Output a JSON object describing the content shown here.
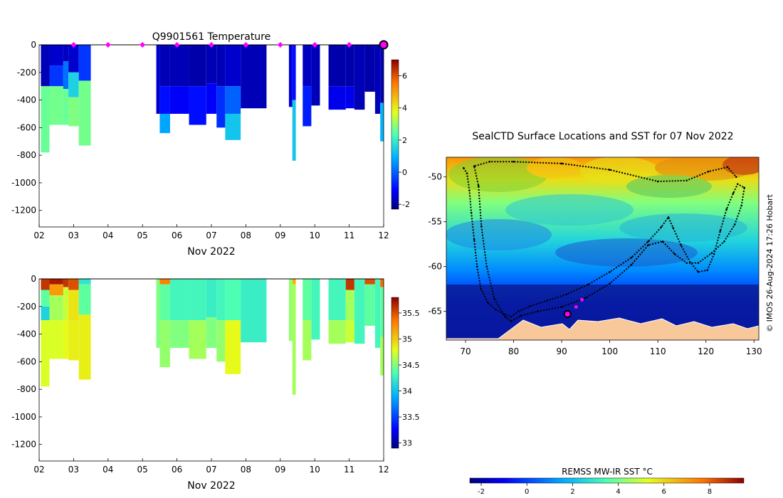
{
  "charts": {
    "temperature": {
      "title": "Q9901561  Temperature",
      "xlabel": "Nov 2022",
      "colorbar_ticks": [
        "-2",
        "0",
        "2",
        "4",
        "6"
      ]
    },
    "salinity": {
      "title": "",
      "xlabel": "Nov 2022",
      "colorbar_ticks": [
        "33",
        "33.5",
        "34",
        "34.5",
        "35",
        "35.5"
      ]
    },
    "map": {
      "title": "SealCTD Surface Locations and SST for 07 Nov 2022",
      "colorbar_label": "REMSS MW-IR SST °C",
      "credit": "© IMOS 26-Aug-2024 17:26 Hobart"
    }
  },
  "chart_data": [
    {
      "id": "temperature",
      "type": "heatmap",
      "title": "Q9901561  Temperature",
      "xlabel": "Nov 2022",
      "ylabel": "",
      "x_ticks": [
        "02",
        "03",
        "04",
        "05",
        "06",
        "07",
        "08",
        "09",
        "10",
        "11",
        "12"
      ],
      "xlim": [
        2,
        12
      ],
      "y_ticks": [
        "0",
        "-200",
        "-400",
        "-600",
        "-800",
        "-1000",
        "-1200"
      ],
      "ylim": [
        -1320,
        0
      ],
      "colorbar": {
        "min": -2.3,
        "max": 7,
        "ticks": [
          -2,
          0,
          2,
          4,
          6
        ]
      },
      "surface_markers_day": [
        3,
        4,
        5,
        6,
        7,
        8,
        9,
        10,
        11,
        12
      ],
      "latest_marker_day": 12,
      "profiles": [
        {
          "t0": 2.05,
          "t1": 2.3,
          "layers": [
            [
              0,
              -300,
              -1.8
            ],
            [
              -300,
              -780,
              2.6
            ]
          ]
        },
        {
          "t0": 2.3,
          "t1": 2.7,
          "layers": [
            [
              0,
              -150,
              -1.6
            ],
            [
              -150,
              -300,
              -0.5
            ],
            [
              -300,
              -580,
              2.7
            ]
          ]
        },
        {
          "t0": 2.7,
          "t1": 2.85,
          "layers": [
            [
              0,
              -120,
              -1.7
            ],
            [
              -120,
              -320,
              0.2
            ],
            [
              -320,
              -580,
              2.6
            ]
          ]
        },
        {
          "t0": 2.85,
          "t1": 3.15,
          "layers": [
            [
              0,
              -200,
              -1.6
            ],
            [
              -200,
              -380,
              1.5
            ],
            [
              -380,
              -590,
              2.8
            ]
          ]
        },
        {
          "t0": 3.15,
          "t1": 3.5,
          "layers": [
            [
              0,
              -260,
              -0.5
            ],
            [
              -260,
              -730,
              2.7
            ]
          ]
        },
        {
          "t0": 5.4,
          "t1": 5.5,
          "layers": [
            [
              0,
              -500,
              -1.6
            ]
          ]
        },
        {
          "t0": 5.5,
          "t1": 5.8,
          "layers": [
            [
              0,
              -300,
              -1.8
            ],
            [
              -300,
              -500,
              -1.0
            ],
            [
              -500,
              -640,
              0.8
            ]
          ]
        },
        {
          "t0": 5.8,
          "t1": 6.35,
          "layers": [
            [
              0,
              -300,
              -1.8
            ],
            [
              -300,
              -500,
              -1.2
            ]
          ]
        },
        {
          "t0": 6.35,
          "t1": 6.85,
          "layers": [
            [
              0,
              -300,
              -1.9
            ],
            [
              -300,
              -580,
              -1.0
            ]
          ]
        },
        {
          "t0": 6.85,
          "t1": 7.15,
          "layers": [
            [
              0,
              -280,
              -1.8
            ],
            [
              -280,
              -500,
              -1.2
            ]
          ]
        },
        {
          "t0": 7.15,
          "t1": 7.4,
          "layers": [
            [
              0,
              -300,
              -1.8
            ],
            [
              -300,
              -600,
              -0.6
            ]
          ]
        },
        {
          "t0": 7.4,
          "t1": 7.85,
          "layers": [
            [
              0,
              -300,
              -1.6
            ],
            [
              -300,
              -500,
              0.0
            ],
            [
              -500,
              -690,
              1.3
            ]
          ]
        },
        {
          "t0": 7.85,
          "t1": 8.6,
          "layers": [
            [
              0,
              -460,
              -1.8
            ]
          ]
        },
        {
          "t0": 9.25,
          "t1": 9.35,
          "layers": [
            [
              0,
              -450,
              -1.5
            ]
          ]
        },
        {
          "t0": 9.35,
          "t1": 9.45,
          "layers": [
            [
              0,
              -400,
              -1.0
            ],
            [
              -400,
              -840,
              1.3
            ]
          ]
        },
        {
          "t0": 9.65,
          "t1": 9.9,
          "layers": [
            [
              0,
              -300,
              -1.7
            ],
            [
              -300,
              -590,
              -0.8
            ]
          ]
        },
        {
          "t0": 9.9,
          "t1": 10.15,
          "layers": [
            [
              0,
              -440,
              -1.8
            ]
          ]
        },
        {
          "t0": 10.4,
          "t1": 10.9,
          "layers": [
            [
              0,
              -300,
              -1.9
            ],
            [
              -300,
              -470,
              -1.3
            ]
          ]
        },
        {
          "t0": 10.9,
          "t1": 11.15,
          "layers": [
            [
              0,
              -300,
              -1.9
            ],
            [
              -300,
              -460,
              -1.3
            ]
          ]
        },
        {
          "t0": 11.15,
          "t1": 11.45,
          "layers": [
            [
              0,
              -470,
              -1.8
            ]
          ]
        },
        {
          "t0": 11.45,
          "t1": 11.75,
          "layers": [
            [
              0,
              -340,
              -1.9
            ]
          ]
        },
        {
          "t0": 11.75,
          "t1": 11.9,
          "layers": [
            [
              0,
              -500,
              -1.8
            ]
          ]
        },
        {
          "t0": 11.9,
          "t1": 12.0,
          "layers": [
            [
              0,
              -420,
              -1.8
            ],
            [
              -420,
              -700,
              1.0
            ]
          ]
        }
      ]
    },
    {
      "id": "salinity",
      "type": "heatmap",
      "title": "",
      "xlabel": "Nov 2022",
      "ylabel": "",
      "x_ticks": [
        "02",
        "03",
        "04",
        "05",
        "06",
        "07",
        "08",
        "09",
        "10",
        "11",
        "12"
      ],
      "xlim": [
        2,
        12
      ],
      "y_ticks": [
        "0",
        "-200",
        "-400",
        "-600",
        "-800",
        "-1000",
        "-1200"
      ],
      "ylim": [
        -1320,
        0
      ],
      "colorbar": {
        "min": 32.9,
        "max": 35.8,
        "ticks": [
          33,
          33.5,
          34,
          34.5,
          35,
          35.5
        ]
      },
      "profiles": [
        {
          "t0": 2.05,
          "t1": 2.3,
          "layers": [
            [
              0,
              -80,
              35.6
            ],
            [
              -80,
              -200,
              34.4
            ],
            [
              -200,
              -300,
              34.1
            ],
            [
              -300,
              -780,
              34.75
            ]
          ]
        },
        {
          "t0": 2.3,
          "t1": 2.7,
          "layers": [
            [
              0,
              -40,
              35.7
            ],
            [
              -40,
              -120,
              35.2
            ],
            [
              -120,
              -300,
              34.6
            ],
            [
              -300,
              -580,
              34.75
            ]
          ]
        },
        {
          "t0": 2.7,
          "t1": 2.85,
          "layers": [
            [
              0,
              -60,
              35.6
            ],
            [
              -60,
              -300,
              34.7
            ],
            [
              -300,
              -580,
              34.8
            ]
          ]
        },
        {
          "t0": 2.85,
          "t1": 3.15,
          "layers": [
            [
              0,
              -80,
              35.5
            ],
            [
              -80,
              -300,
              34.9
            ],
            [
              -300,
              -590,
              34.85
            ]
          ]
        },
        {
          "t0": 3.15,
          "t1": 3.5,
          "layers": [
            [
              0,
              -40,
              34.2
            ],
            [
              -40,
              -260,
              34.4
            ],
            [
              -260,
              -730,
              34.85
            ]
          ]
        },
        {
          "t0": 5.4,
          "t1": 5.5,
          "layers": [
            [
              0,
              -500,
              34.5
            ]
          ]
        },
        {
          "t0": 5.5,
          "t1": 5.8,
          "layers": [
            [
              0,
              -40,
              35.3
            ],
            [
              -40,
              -300,
              34.4
            ],
            [
              -300,
              -640,
              34.55
            ]
          ]
        },
        {
          "t0": 5.8,
          "t1": 6.35,
          "layers": [
            [
              0,
              -300,
              34.3
            ],
            [
              -300,
              -500,
              34.5
            ]
          ]
        },
        {
          "t0": 6.35,
          "t1": 6.85,
          "layers": [
            [
              0,
              -300,
              34.3
            ],
            [
              -300,
              -580,
              34.6
            ]
          ]
        },
        {
          "t0": 6.85,
          "t1": 7.15,
          "layers": [
            [
              0,
              -280,
              34.25
            ],
            [
              -280,
              -500,
              34.5
            ]
          ]
        },
        {
          "t0": 7.15,
          "t1": 7.4,
          "layers": [
            [
              0,
              -300,
              34.3
            ],
            [
              -300,
              -600,
              34.55
            ]
          ]
        },
        {
          "t0": 7.4,
          "t1": 7.85,
          "layers": [
            [
              0,
              -300,
              34.35
            ],
            [
              -300,
              -690,
              34.8
            ]
          ]
        },
        {
          "t0": 7.85,
          "t1": 8.6,
          "layers": [
            [
              0,
              -460,
              34.25
            ]
          ]
        },
        {
          "t0": 9.25,
          "t1": 9.35,
          "layers": [
            [
              0,
              -450,
              34.55
            ]
          ]
        },
        {
          "t0": 9.35,
          "t1": 9.45,
          "layers": [
            [
              0,
              -40,
              35.1
            ],
            [
              -40,
              -840,
              34.6
            ]
          ]
        },
        {
          "t0": 9.65,
          "t1": 9.9,
          "layers": [
            [
              0,
              -300,
              34.4
            ],
            [
              -300,
              -590,
              34.6
            ]
          ]
        },
        {
          "t0": 9.9,
          "t1": 10.15,
          "layers": [
            [
              0,
              -440,
              34.3
            ]
          ]
        },
        {
          "t0": 10.4,
          "t1": 10.9,
          "layers": [
            [
              0,
              -300,
              34.3
            ],
            [
              -300,
              -470,
              34.6
            ]
          ]
        },
        {
          "t0": 10.9,
          "t1": 11.15,
          "layers": [
            [
              0,
              -80,
              35.6
            ],
            [
              -80,
              -300,
              34.6
            ],
            [
              -300,
              -460,
              34.7
            ]
          ]
        },
        {
          "t0": 11.15,
          "t1": 11.45,
          "layers": [
            [
              0,
              -470,
              34.3
            ]
          ]
        },
        {
          "t0": 11.45,
          "t1": 11.75,
          "layers": [
            [
              0,
              -40,
              35.5
            ],
            [
              -40,
              -340,
              34.4
            ]
          ]
        },
        {
          "t0": 11.75,
          "t1": 11.9,
          "layers": [
            [
              0,
              -500,
              34.3
            ]
          ]
        },
        {
          "t0": 11.9,
          "t1": 12.0,
          "layers": [
            [
              0,
              -60,
              35.4
            ],
            [
              -60,
              -420,
              34.4
            ],
            [
              -420,
              -700,
              34.6
            ]
          ]
        }
      ]
    },
    {
      "id": "map",
      "type": "scatter",
      "title": "SealCTD Surface Locations and SST for 07 Nov 2022",
      "xlabel": "",
      "ylabel": "",
      "x_ticks": [
        "70",
        "80",
        "90",
        "100",
        "110",
        "120",
        "130"
      ],
      "y_ticks": [
        "-50",
        "-55",
        "-60",
        "-65"
      ],
      "xlim": [
        66,
        131
      ],
      "ylim": [
        -68.2,
        -47.8
      ],
      "colorbar": {
        "label": "REMSS MW-IR SST °C",
        "min": -2.5,
        "max": 9.5,
        "ticks": [
          -2,
          0,
          2,
          4,
          6,
          8
        ]
      },
      "track_points": [
        [
          69.6,
          -49.0
        ],
        [
          70.3,
          -49.6
        ],
        [
          70.8,
          -51.5
        ],
        [
          71.2,
          -54.0
        ],
        [
          71.8,
          -57.0
        ],
        [
          72.4,
          -60.0
        ],
        [
          73.2,
          -62.5
        ],
        [
          74.6,
          -64.0
        ],
        [
          76.3,
          -64.8
        ],
        [
          78.0,
          -65.3
        ],
        [
          79.5,
          -65.6
        ],
        [
          81.0,
          -65.0
        ],
        [
          83.5,
          -64.4
        ],
        [
          87.0,
          -63.8
        ],
        [
          91.0,
          -63.1
        ],
        [
          95.5,
          -62.0
        ],
        [
          100.0,
          -60.6
        ],
        [
          104.5,
          -59.0
        ],
        [
          108.0,
          -57.2
        ],
        [
          110.7,
          -55.6
        ],
        [
          112.2,
          -54.5
        ],
        [
          113.2,
          -55.7
        ],
        [
          114.8,
          -57.6
        ],
        [
          116.7,
          -59.5
        ],
        [
          118.4,
          -60.6
        ],
        [
          120.3,
          -60.4
        ],
        [
          121.7,
          -58.6
        ],
        [
          123.0,
          -56.0
        ],
        [
          124.3,
          -53.6
        ],
        [
          125.7,
          -51.8
        ],
        [
          126.6,
          -50.8
        ],
        [
          128.0,
          -51.2
        ],
        [
          127.4,
          -53.2
        ],
        [
          126.0,
          -55.3
        ],
        [
          123.8,
          -57.2
        ],
        [
          121.2,
          -58.5
        ],
        [
          118.4,
          -59.6
        ],
        [
          116.0,
          -59.6
        ],
        [
          113.5,
          -58.6
        ],
        [
          111.0,
          -57.2
        ],
        [
          108.0,
          -57.6
        ],
        [
          104.5,
          -59.8
        ],
        [
          100.0,
          -61.9
        ],
        [
          95.0,
          -63.5
        ],
        [
          90.0,
          -64.5
        ],
        [
          85.0,
          -65.0
        ],
        [
          81.5,
          -65.5
        ],
        [
          79.5,
          -66.1
        ],
        [
          78.2,
          -65.6
        ],
        [
          76.0,
          -63.6
        ],
        [
          74.4,
          -60.0
        ],
        [
          73.3,
          -55.5
        ],
        [
          72.7,
          -51.0
        ],
        [
          71.8,
          -48.8
        ],
        [
          75.0,
          -48.3
        ],
        [
          80.0,
          -48.3
        ],
        [
          90.0,
          -48.5
        ],
        [
          100.0,
          -49.2
        ],
        [
          110.0,
          -50.5
        ],
        [
          116.0,
          -50.4
        ],
        [
          120.5,
          -49.4
        ],
        [
          124.5,
          -48.9
        ],
        [
          126.3,
          -50.0
        ]
      ],
      "recent_points": [
        [
          93.0,
          -64.5
        ],
        [
          94.2,
          -63.7
        ]
      ],
      "current_location": [
        91.2,
        -65.3
      ]
    }
  ]
}
